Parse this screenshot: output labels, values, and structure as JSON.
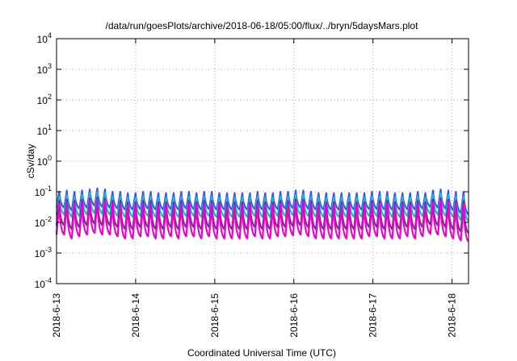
{
  "chart_data": {
    "type": "line",
    "title": "/data/run/goesPlots/archive/2018-06-18/05:00/flux/../bryn/5daysMars.plot",
    "xlabel": "Coordinated Universal Time (UTC)",
    "ylabel": "cSv/day",
    "y_scale": "log",
    "ylim": [
      0.0001,
      10000
    ],
    "y_ticks": [
      {
        "value": 0.0001,
        "base": "10",
        "exp": "-4"
      },
      {
        "value": 0.001,
        "base": "10",
        "exp": "-3"
      },
      {
        "value": 0.01,
        "base": "10",
        "exp": "-2"
      },
      {
        "value": 0.1,
        "base": "10",
        "exp": "-1"
      },
      {
        "value": 1,
        "base": "10",
        "exp": "0"
      },
      {
        "value": 10,
        "base": "10",
        "exp": "1"
      },
      {
        "value": 100,
        "base": "10",
        "exp": "2"
      },
      {
        "value": 1000,
        "base": "10",
        "exp": "3"
      },
      {
        "value": 10000,
        "base": "10",
        "exp": "4"
      }
    ],
    "x_range": [
      "2018-06-13 00:00",
      "2018-06-18 05:00"
    ],
    "x_ticks": [
      {
        "value": "2018-06-13 00:00",
        "label": "2018-6-13"
      },
      {
        "value": "2018-06-14 00:00",
        "label": "2018-6-14"
      },
      {
        "value": "2018-06-15 00:00",
        "label": "2018-6-15"
      },
      {
        "value": "2018-06-16 00:00",
        "label": "2018-6-16"
      },
      {
        "value": "2018-06-17 00:00",
        "label": "2018-6-17"
      },
      {
        "value": "2018-06-18 00:00",
        "label": "2018-6-18"
      }
    ],
    "grid": true,
    "series": [
      {
        "color": "#3355ff",
        "values": [
          0.1,
          0.11,
          0.1,
          0.11,
          0.12,
          0.13,
          0.12,
          0.1,
          0.1,
          0.09,
          0.09,
          0.1,
          0.1,
          0.09,
          0.09,
          0.09,
          0.1,
          0.1,
          0.09,
          0.1,
          0.1,
          0.09,
          0.09,
          0.09,
          0.09,
          0.09,
          0.1,
          0.09,
          0.09,
          0.1,
          0.1,
          0.11,
          0.11,
          0.1,
          0.09,
          0.09,
          0.09,
          0.09,
          0.09,
          0.09,
          0.09,
          0.1,
          0.1,
          0.1,
          0.09,
          0.09,
          0.09,
          0.1,
          0.09,
          0.11,
          0.12,
          0.11,
          0.1,
          0.1
        ],
        "troughs": [
          0.03,
          0.025,
          0.028,
          0.03,
          0.035,
          0.032,
          0.03,
          0.028,
          0.026,
          0.026,
          0.027,
          0.028,
          0.026,
          0.026,
          0.027,
          0.026,
          0.028,
          0.027,
          0.026,
          0.027,
          0.026,
          0.026,
          0.026,
          0.026,
          0.026,
          0.027,
          0.026,
          0.026,
          0.027,
          0.028,
          0.029,
          0.03,
          0.028,
          0.026,
          0.026,
          0.026,
          0.026,
          0.026,
          0.026,
          0.026,
          0.027,
          0.027,
          0.026,
          0.026,
          0.026,
          0.027,
          0.026,
          0.028,
          0.032,
          0.03,
          0.028,
          0.025,
          0.02,
          0.018
        ]
      },
      {
        "color": "#1fb8c8",
        "values": [
          0.07,
          0.08,
          0.07,
          0.08,
          0.09,
          0.1,
          0.09,
          0.07,
          0.07,
          0.065,
          0.065,
          0.07,
          0.07,
          0.065,
          0.065,
          0.065,
          0.07,
          0.07,
          0.065,
          0.07,
          0.07,
          0.065,
          0.065,
          0.065,
          0.065,
          0.065,
          0.07,
          0.065,
          0.065,
          0.07,
          0.07,
          0.08,
          0.08,
          0.07,
          0.065,
          0.065,
          0.065,
          0.065,
          0.065,
          0.065,
          0.065,
          0.07,
          0.07,
          0.07,
          0.065,
          0.065,
          0.065,
          0.07,
          0.065,
          0.08,
          0.09,
          0.08,
          0.07,
          0.07
        ],
        "troughs": [
          0.018,
          0.015,
          0.016,
          0.018,
          0.02,
          0.019,
          0.018,
          0.016,
          0.015,
          0.015,
          0.016,
          0.016,
          0.015,
          0.015,
          0.016,
          0.015,
          0.016,
          0.016,
          0.015,
          0.016,
          0.015,
          0.015,
          0.015,
          0.015,
          0.015,
          0.016,
          0.015,
          0.015,
          0.016,
          0.016,
          0.017,
          0.018,
          0.016,
          0.015,
          0.015,
          0.015,
          0.015,
          0.015,
          0.015,
          0.015,
          0.016,
          0.016,
          0.015,
          0.015,
          0.015,
          0.016,
          0.015,
          0.016,
          0.019,
          0.018,
          0.016,
          0.015,
          0.012,
          0.011
        ]
      },
      {
        "color": "#7a2a8c",
        "values": [
          0.05,
          0.055,
          0.05,
          0.055,
          0.06,
          0.065,
          0.06,
          0.05,
          0.05,
          0.045,
          0.045,
          0.05,
          0.05,
          0.045,
          0.045,
          0.045,
          0.05,
          0.05,
          0.045,
          0.05,
          0.05,
          0.045,
          0.045,
          0.045,
          0.045,
          0.045,
          0.05,
          0.045,
          0.045,
          0.05,
          0.05,
          0.055,
          0.055,
          0.05,
          0.045,
          0.045,
          0.045,
          0.045,
          0.045,
          0.045,
          0.045,
          0.05,
          0.05,
          0.05,
          0.045,
          0.045,
          0.045,
          0.05,
          0.045,
          0.055,
          0.06,
          0.055,
          0.05,
          0.05
        ],
        "troughs": [
          0.008,
          0.006,
          0.007,
          0.008,
          0.009,
          0.008,
          0.008,
          0.007,
          0.006,
          0.006,
          0.007,
          0.007,
          0.006,
          0.006,
          0.007,
          0.006,
          0.007,
          0.007,
          0.006,
          0.007,
          0.006,
          0.006,
          0.006,
          0.006,
          0.006,
          0.007,
          0.006,
          0.006,
          0.007,
          0.007,
          0.0075,
          0.008,
          0.007,
          0.006,
          0.006,
          0.006,
          0.006,
          0.006,
          0.006,
          0.006,
          0.007,
          0.007,
          0.006,
          0.006,
          0.006,
          0.007,
          0.006,
          0.007,
          0.0085,
          0.008,
          0.007,
          0.006,
          0.005,
          0.0045
        ]
      },
      {
        "color": "#ee00cc",
        "values": [
          0.04,
          0.045,
          0.04,
          0.045,
          0.05,
          0.055,
          0.05,
          0.04,
          0.04,
          0.036,
          0.036,
          0.04,
          0.04,
          0.036,
          0.036,
          0.036,
          0.04,
          0.04,
          0.036,
          0.04,
          0.04,
          0.036,
          0.036,
          0.036,
          0.036,
          0.036,
          0.04,
          0.036,
          0.036,
          0.04,
          0.04,
          0.045,
          0.045,
          0.04,
          0.036,
          0.036,
          0.036,
          0.036,
          0.036,
          0.036,
          0.036,
          0.04,
          0.04,
          0.04,
          0.036,
          0.036,
          0.036,
          0.04,
          0.036,
          0.045,
          0.05,
          0.045,
          0.04,
          0.04
        ],
        "troughs": [
          0.004,
          0.003,
          0.0035,
          0.004,
          0.0045,
          0.004,
          0.004,
          0.0035,
          0.003,
          0.003,
          0.0035,
          0.0035,
          0.003,
          0.003,
          0.0035,
          0.003,
          0.0035,
          0.0035,
          0.003,
          0.0035,
          0.003,
          0.003,
          0.003,
          0.003,
          0.003,
          0.0035,
          0.003,
          0.003,
          0.0035,
          0.0035,
          0.0038,
          0.004,
          0.0035,
          0.003,
          0.003,
          0.003,
          0.003,
          0.003,
          0.003,
          0.003,
          0.0035,
          0.0035,
          0.003,
          0.003,
          0.003,
          0.0035,
          0.003,
          0.0035,
          0.0042,
          0.004,
          0.0035,
          0.003,
          0.0026,
          0.0024
        ]
      }
    ]
  }
}
